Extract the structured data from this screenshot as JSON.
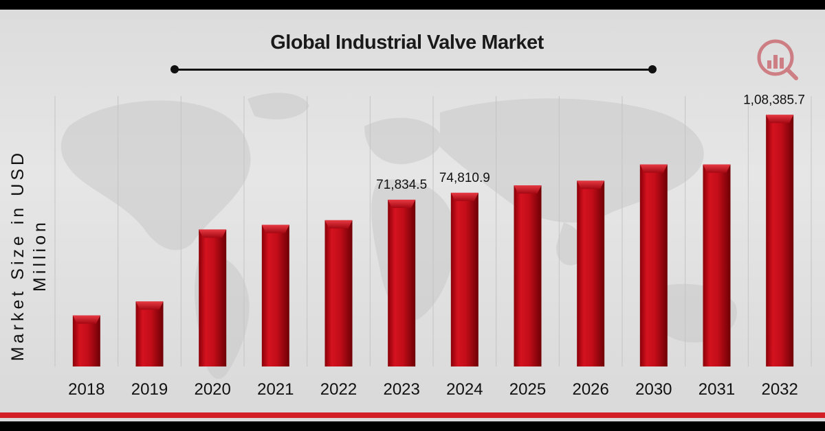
{
  "header": {
    "title": "Global Industrial Valve Market"
  },
  "colors": {
    "bar": "#c8101e",
    "bar_dark": "#7a0000",
    "accent_stripe": "#d21f25",
    "logo": "#c0303a"
  },
  "icons": {
    "logo": "analytics-logo-icon",
    "background": "world-map"
  },
  "chart_data": {
    "type": "bar",
    "title": "Global Industrial Valve Market",
    "xlabel": "",
    "ylabel": "Market Size in USD Million",
    "categories": [
      "2018",
      "2019",
      "2020",
      "2021",
      "2022",
      "2023",
      "2024",
      "2025",
      "2026",
      "2030",
      "2031",
      "2032"
    ],
    "values": [
      22000,
      28000,
      59000,
      61000,
      63000,
      71834.5,
      74810.9,
      78000,
      80000,
      87000,
      87000,
      108385.7
    ],
    "data_labels": [
      "",
      "",
      "",
      "",
      "",
      "71,834.5",
      "74,810.9",
      "",
      "",
      "",
      "",
      "1,08,385.7"
    ],
    "ylim": [
      0,
      120000
    ],
    "grid": "vertical",
    "legend": "none"
  }
}
